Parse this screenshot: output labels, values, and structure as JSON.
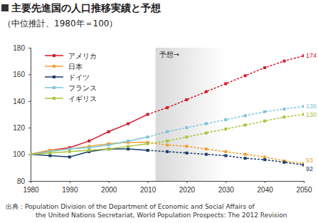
{
  "chart_data": {
    "type": "line",
    "title": "主要先進国の人口推移実績と予想",
    "subtitle": "（中位推計、1980年＝100）",
    "x": [
      1980,
      1985,
      1990,
      1995,
      2000,
      2005,
      2010,
      2015,
      2020,
      2025,
      2030,
      2035,
      2040,
      2045,
      2050
    ],
    "xlim": [
      1980,
      2050
    ],
    "xticks": [
      1980,
      1990,
      2000,
      2010,
      2020,
      2030,
      2040,
      2050
    ],
    "ylim": [
      80,
      180
    ],
    "yticks": [
      80,
      100,
      120,
      140,
      160,
      180
    ],
    "grid": false,
    "legend": "upper left",
    "marker": "square",
    "annotations": [
      {
        "text": "予想→",
        "x": 2012,
        "x_end": 2030
      }
    ],
    "source": [
      "出典：Population Division of the Department of Economic and Social Affairs of",
      "the United Nations Secretariat, World Population Prospects: The 2012 Revision"
    ],
    "series": [
      {
        "name": "アメリカ",
        "color": "#d7192d",
        "values": [
          100,
          103,
          105,
          110,
          117,
          123,
          130,
          135,
          141,
          147,
          153,
          159,
          165,
          170,
          174
        ],
        "value_labels": [
          null,
          null,
          null,
          null,
          null,
          null,
          null,
          null,
          null,
          null,
          null,
          null,
          null,
          null,
          "174"
        ]
      },
      {
        "name": "日本",
        "color": "#f0a030",
        "values": [
          100,
          103,
          104,
          106,
          108,
          109,
          109,
          107,
          106,
          104,
          102,
          100,
          98,
          95,
          93
        ],
        "value_labels": [
          null,
          null,
          null,
          null,
          null,
          null,
          null,
          null,
          null,
          null,
          null,
          null,
          null,
          null,
          "93"
        ]
      },
      {
        "name": "ドイツ",
        "color": "#1a3a6b",
        "values": [
          100,
          99,
          98,
          102,
          104,
          104,
          103,
          102,
          101,
          100,
          99,
          97,
          96,
          94,
          92
        ],
        "value_labels": [
          null,
          null,
          null,
          null,
          null,
          null,
          null,
          null,
          null,
          null,
          null,
          null,
          null,
          null,
          "92"
        ]
      },
      {
        "name": "フランス",
        "color": "#7ec4d8",
        "values": [
          100,
          102,
          104,
          105,
          107,
          110,
          113,
          117,
          120,
          123,
          126,
          129,
          132,
          134,
          136
        ],
        "value_labels": [
          null,
          null,
          null,
          null,
          null,
          null,
          null,
          null,
          null,
          null,
          null,
          null,
          null,
          null,
          "136"
        ]
      },
      {
        "name": "イギリス",
        "color": "#a8c43a",
        "values": [
          100,
          101,
          102,
          103,
          104,
          106,
          108,
          110,
          113,
          116,
          119,
          122,
          125,
          128,
          130
        ],
        "value_labels": [
          null,
          null,
          null,
          null,
          null,
          null,
          null,
          null,
          null,
          null,
          null,
          null,
          null,
          null,
          "130"
        ]
      }
    ]
  }
}
